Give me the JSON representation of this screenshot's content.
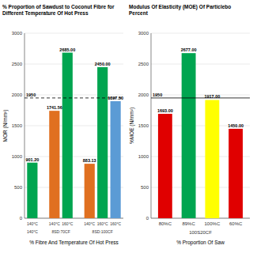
{
  "chart_data": [
    {
      "type": "bar",
      "title": "% Proportion of Sawdust to Coconut Fibre for\nDifferent Temperature Of Hot Press",
      "xlabel": "% Fibre And Temperature Of Hot Press",
      "ylabel": "MOR (N/mm²)",
      "categories": [
        "140°C",
        "140°C",
        "160°C",
        "140°C",
        "160°C",
        "160°C"
      ],
      "values": [
        901.2,
        1741.56,
        2685.0,
        883.13,
        2450.0,
        1897.5
      ],
      "value_labels": [
        "901.20",
        "1741.56",
        "2685.00",
        "883.13",
        "2450.00",
        "1897.50"
      ],
      "colors": [
        "#00a550",
        "#e07020",
        "#00a550",
        "#e07020",
        "#00a550",
        "#5b9bd5"
      ],
      "groups": [
        {
          "label": "140°C",
          "size": 1
        },
        {
          "label": "8SD:70CF",
          "size": 2
        },
        {
          "label": "8SD:100CF",
          "size": 3
        }
      ],
      "reference_line": {
        "value": 1950,
        "label": "1950",
        "line_style": "dashed"
      },
      "ylim": [
        0,
        3000
      ],
      "yticks": [
        0,
        500,
        1000,
        1500,
        2000,
        2500,
        3000
      ],
      "grid": true,
      "data_labels": true
    },
    {
      "type": "bar",
      "title": "Modulus Of Elasticity (MOE) Of Particlebo\nPercent",
      "xlabel": "% Proportion Of Saw",
      "xlabel2": "100S20CF",
      "ylabel": "%MOE (N/mm²)",
      "categories": [
        "80%C",
        "89%C",
        "100%C",
        "60%C"
      ],
      "values": [
        1693.0,
        2677.0,
        1917.0,
        1450.0
      ],
      "value_labels": [
        "1693.00",
        "2677.00",
        "1917.00",
        "1450.00"
      ],
      "colors": [
        "#e00000",
        "#00a550",
        "#ffff00",
        "#e00000"
      ],
      "reference_line": {
        "value": 1950,
        "label": "1950",
        "line_style": "solid"
      },
      "ylim": [
        0,
        3000
      ],
      "yticks": [
        0,
        500,
        1000,
        1500,
        2000,
        2500,
        3000
      ],
      "grid": true,
      "data_labels": true
    }
  ]
}
